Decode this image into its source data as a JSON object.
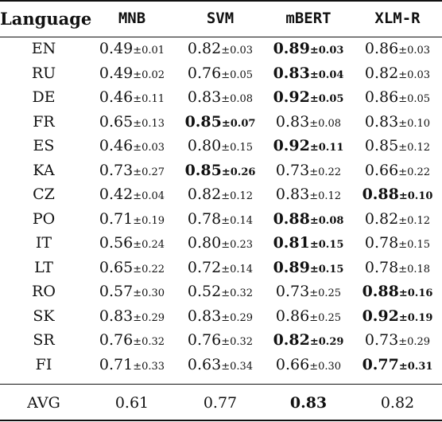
{
  "table": {
    "headers": [
      "Language",
      "MNB",
      "SVM",
      "mBERT",
      "XLM-R"
    ],
    "rows": [
      {
        "lang": "EN",
        "cells": [
          {
            "v": "0.49",
            "sd": "±0.01",
            "best": false
          },
          {
            "v": "0.82",
            "sd": "±0.03",
            "best": false
          },
          {
            "v": "0.89",
            "sd": "±0.03",
            "best": true
          },
          {
            "v": "0.86",
            "sd": "±0.03",
            "best": false
          }
        ]
      },
      {
        "lang": "RU",
        "cells": [
          {
            "v": "0.49",
            "sd": "±0.02",
            "best": false
          },
          {
            "v": "0.76",
            "sd": "±0.05",
            "best": false
          },
          {
            "v": "0.83",
            "sd": "±0.04",
            "best": true
          },
          {
            "v": "0.82",
            "sd": "±0.03",
            "best": false
          }
        ]
      },
      {
        "lang": "DE",
        "cells": [
          {
            "v": "0.46",
            "sd": "±0.11",
            "best": false
          },
          {
            "v": "0.83",
            "sd": "±0.08",
            "best": false
          },
          {
            "v": "0.92",
            "sd": "±0.05",
            "best": true
          },
          {
            "v": "0.86",
            "sd": "±0.05",
            "best": false
          }
        ]
      },
      {
        "lang": "FR",
        "cells": [
          {
            "v": "0.65",
            "sd": "±0.13",
            "best": false
          },
          {
            "v": "0.85",
            "sd": "±0.07",
            "best": true
          },
          {
            "v": "0.83",
            "sd": "±0.08",
            "best": false
          },
          {
            "v": "0.83",
            "sd": "±0.10",
            "best": false
          }
        ]
      },
      {
        "lang": "ES",
        "cells": [
          {
            "v": "0.46",
            "sd": "±0.03",
            "best": false
          },
          {
            "v": "0.80",
            "sd": "±0.15",
            "best": false
          },
          {
            "v": "0.92",
            "sd": "±0.11",
            "best": true
          },
          {
            "v": "0.85",
            "sd": "±0.12",
            "best": false
          }
        ]
      },
      {
        "lang": "KA",
        "cells": [
          {
            "v": "0.73",
            "sd": "±0.27",
            "best": false
          },
          {
            "v": "0.85",
            "sd": "±0.26",
            "best": true
          },
          {
            "v": "0.73",
            "sd": "±0.22",
            "best": false
          },
          {
            "v": "0.66",
            "sd": "±0.22",
            "best": false
          }
        ]
      },
      {
        "lang": "CZ",
        "cells": [
          {
            "v": "0.42",
            "sd": "±0.04",
            "best": false
          },
          {
            "v": "0.82",
            "sd": "±0.12",
            "best": false
          },
          {
            "v": "0.83",
            "sd": "±0.12",
            "best": false
          },
          {
            "v": "0.88",
            "sd": "±0.10",
            "best": true
          }
        ]
      },
      {
        "lang": "PO",
        "cells": [
          {
            "v": "0.71",
            "sd": "±0.19",
            "best": false
          },
          {
            "v": "0.78",
            "sd": "±0.14",
            "best": false
          },
          {
            "v": "0.88",
            "sd": "±0.08",
            "best": true
          },
          {
            "v": "0.82",
            "sd": "±0.12",
            "best": false
          }
        ]
      },
      {
        "lang": "IT",
        "cells": [
          {
            "v": "0.56",
            "sd": "±0.24",
            "best": false
          },
          {
            "v": "0.80",
            "sd": "±0.23",
            "best": false
          },
          {
            "v": "0.81",
            "sd": "±0.15",
            "best": true
          },
          {
            "v": "0.78",
            "sd": "±0.15",
            "best": false
          }
        ]
      },
      {
        "lang": "LT",
        "cells": [
          {
            "v": "0.65",
            "sd": "±0.22",
            "best": false
          },
          {
            "v": "0.72",
            "sd": "±0.14",
            "best": false
          },
          {
            "v": "0.89",
            "sd": "±0.15",
            "best": true
          },
          {
            "v": "0.78",
            "sd": "±0.18",
            "best": false
          }
        ]
      },
      {
        "lang": "RO",
        "cells": [
          {
            "v": "0.57",
            "sd": "±0.30",
            "best": false
          },
          {
            "v": "0.52",
            "sd": "±0.32",
            "best": false
          },
          {
            "v": "0.73",
            "sd": "±0.25",
            "best": false
          },
          {
            "v": "0.88",
            "sd": "±0.16",
            "best": true
          }
        ]
      },
      {
        "lang": "SK",
        "cells": [
          {
            "v": "0.83",
            "sd": "±0.29",
            "best": false
          },
          {
            "v": "0.83",
            "sd": "±0.29",
            "best": false
          },
          {
            "v": "0.86",
            "sd": "±0.25",
            "best": false
          },
          {
            "v": "0.92",
            "sd": "±0.19",
            "best": true
          }
        ]
      },
      {
        "lang": "SR",
        "cells": [
          {
            "v": "0.76",
            "sd": "±0.32",
            "best": false
          },
          {
            "v": "0.76",
            "sd": "±0.32",
            "best": false
          },
          {
            "v": "0.82",
            "sd": "±0.29",
            "best": true
          },
          {
            "v": "0.73",
            "sd": "±0.29",
            "best": false
          }
        ]
      },
      {
        "lang": "FI",
        "cells": [
          {
            "v": "0.71",
            "sd": "±0.33",
            "best": false
          },
          {
            "v": "0.63",
            "sd": "±0.34",
            "best": false
          },
          {
            "v": "0.66",
            "sd": "±0.30",
            "best": false
          },
          {
            "v": "0.77",
            "sd": "±0.31",
            "best": true
          }
        ]
      }
    ],
    "avg": {
      "label": "AVG",
      "values": [
        {
          "v": "0.61",
          "best": false
        },
        {
          "v": "0.77",
          "best": false
        },
        {
          "v": "0.83",
          "best": true
        },
        {
          "v": "0.82",
          "best": false
        }
      ]
    }
  }
}
